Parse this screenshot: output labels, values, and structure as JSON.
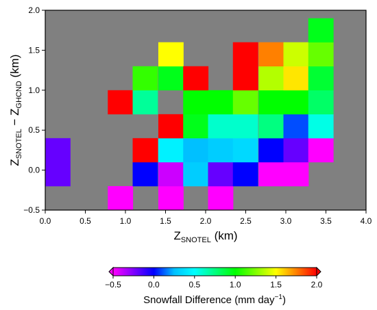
{
  "chart_data": {
    "type": "heatmap",
    "xlabel": {
      "main": "Z",
      "sub": "SNOTEL",
      "unit": " (km)"
    },
    "ylabel": {
      "main1": "Z",
      "sub1": "SNOTEL",
      "minus": " − ",
      "main2": "Z",
      "sub2": "GHCND",
      "unit": " (km)"
    },
    "xlim": [
      0.0,
      4.0
    ],
    "ylim": [
      -0.5,
      2.0
    ],
    "x_ticks": [
      "0.0",
      "0.5",
      "1.0",
      "1.5",
      "2.0",
      "2.5",
      "3.0",
      "3.5",
      "4.0"
    ],
    "y_ticks": [
      "−0.5",
      "0.0",
      "0.5",
      "1.0",
      "1.5",
      "2.0"
    ],
    "x_tick_values": [
      0.0,
      0.5,
      1.0,
      1.5,
      2.0,
      2.5,
      3.0,
      3.5,
      4.0
    ],
    "y_tick_values": [
      -0.5,
      0.0,
      0.5,
      1.0,
      1.5,
      2.0
    ],
    "background_color": "#808080",
    "cell_width": 0.3125,
    "cell_height": 0.3,
    "colorbar": {
      "label_text": "Snowfall Difference (mm day",
      "label_exp": "−1",
      "label_close": ")",
      "range": [
        -0.5,
        2.0
      ],
      "ticks": [
        "−0.5",
        "0.0",
        "0.5",
        "1.0",
        "1.5",
        "2.0"
      ],
      "tick_values": [
        -0.5,
        0.0,
        0.5,
        1.0,
        1.5,
        2.0
      ],
      "colors": [
        "#ff00ff",
        "#8000ff",
        "#0000ff",
        "#00c0ff",
        "#00ffff",
        "#00ff80",
        "#00ff00",
        "#80ff00",
        "#ffff00",
        "#ff8000",
        "#ff0000"
      ]
    },
    "cells": [
      {
        "x": 0.0,
        "y": 0.1,
        "value": -0.2
      },
      {
        "x": 0.0,
        "y": -0.2,
        "value": -0.2
      },
      {
        "x": 0.78,
        "y": -0.5,
        "value": -0.5
      },
      {
        "x": 0.78,
        "y": 0.7,
        "value": 2.0
      },
      {
        "x": 1.09,
        "y": -0.2,
        "value": 0.0
      },
      {
        "x": 1.09,
        "y": 0.1,
        "value": 2.0
      },
      {
        "x": 1.09,
        "y": 0.7,
        "value": 0.7
      },
      {
        "x": 1.09,
        "y": 1.0,
        "value": 1.1
      },
      {
        "x": 1.41,
        "y": -0.5,
        "value": -0.5
      },
      {
        "x": 1.41,
        "y": -0.2,
        "value": -0.4
      },
      {
        "x": 1.41,
        "y": 0.1,
        "value": 0.45
      },
      {
        "x": 1.41,
        "y": 0.4,
        "value": 2.0
      },
      {
        "x": 1.41,
        "y": 1.0,
        "value": 0.95
      },
      {
        "x": 1.41,
        "y": 1.3,
        "value": 1.5
      },
      {
        "x": 1.72,
        "y": -0.2,
        "value": 0.3
      },
      {
        "x": 1.72,
        "y": 0.1,
        "value": 0.25
      },
      {
        "x": 1.72,
        "y": 0.4,
        "value": 0.95
      },
      {
        "x": 1.72,
        "y": 0.7,
        "value": 1.0
      },
      {
        "x": 1.72,
        "y": 1.0,
        "value": 2.0
      },
      {
        "x": 2.03,
        "y": -0.5,
        "value": -0.5
      },
      {
        "x": 2.03,
        "y": -0.2,
        "value": -0.2
      },
      {
        "x": 2.03,
        "y": 0.1,
        "value": 0.3
      },
      {
        "x": 2.03,
        "y": 0.4,
        "value": 0.6
      },
      {
        "x": 2.03,
        "y": 0.7,
        "value": 1.0
      },
      {
        "x": 2.34,
        "y": -0.2,
        "value": 0.0
      },
      {
        "x": 2.34,
        "y": 0.1,
        "value": 0.35
      },
      {
        "x": 2.34,
        "y": 0.4,
        "value": 0.6
      },
      {
        "x": 2.34,
        "y": 0.7,
        "value": 1.2
      },
      {
        "x": 2.34,
        "y": 1.0,
        "value": 2.0
      },
      {
        "x": 2.34,
        "y": 1.3,
        "value": 2.0
      },
      {
        "x": 2.66,
        "y": -0.2,
        "value": -0.5
      },
      {
        "x": 2.66,
        "y": 0.1,
        "value": 0.0
      },
      {
        "x": 2.66,
        "y": 0.4,
        "value": 0.75
      },
      {
        "x": 2.66,
        "y": 0.7,
        "value": 1.0
      },
      {
        "x": 2.66,
        "y": 1.0,
        "value": 1.35
      },
      {
        "x": 2.66,
        "y": 1.3,
        "value": 1.75
      },
      {
        "x": 2.97,
        "y": -0.2,
        "value": -0.5
      },
      {
        "x": 2.97,
        "y": 0.1,
        "value": -0.2
      },
      {
        "x": 2.97,
        "y": 0.4,
        "value": 0.1
      },
      {
        "x": 2.97,
        "y": 0.7,
        "value": 1.0
      },
      {
        "x": 2.97,
        "y": 1.0,
        "value": 1.55
      },
      {
        "x": 2.97,
        "y": 1.3,
        "value": 1.4
      },
      {
        "x": 3.28,
        "y": 0.1,
        "value": -0.5
      },
      {
        "x": 3.28,
        "y": 0.4,
        "value": 0.55
      },
      {
        "x": 3.28,
        "y": 0.7,
        "value": 0.8
      },
      {
        "x": 3.28,
        "y": 1.0,
        "value": 0.9
      },
      {
        "x": 3.28,
        "y": 1.3,
        "value": 1.2
      },
      {
        "x": 3.28,
        "y": 1.6,
        "value": 0.95
      }
    ]
  }
}
